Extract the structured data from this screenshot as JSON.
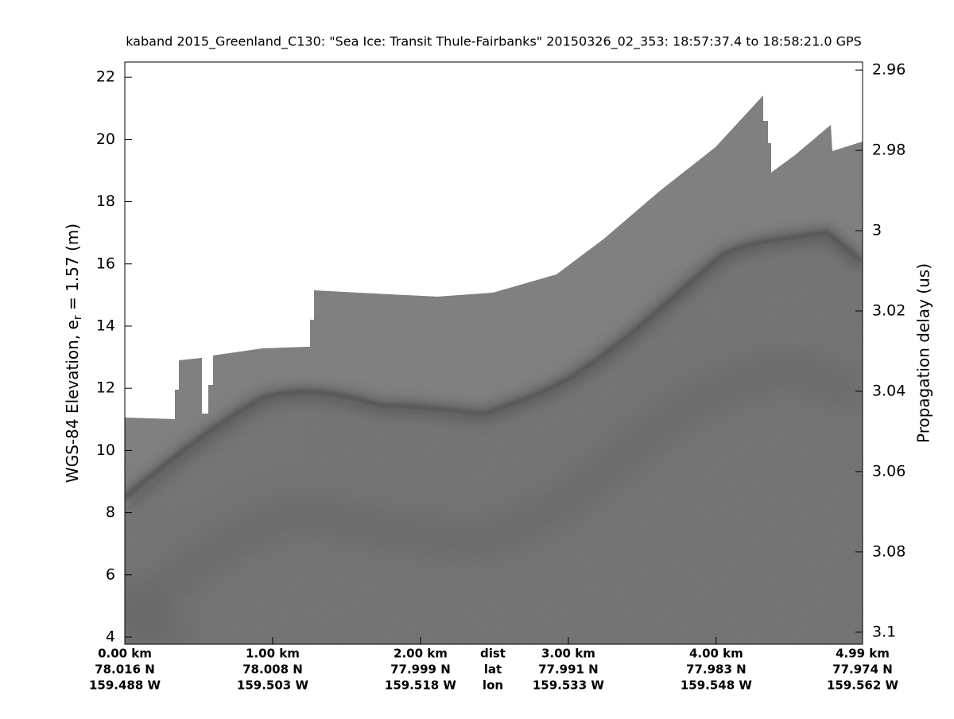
{
  "chart_data": {
    "type": "echogram",
    "title": "kaband 2015_Greenland_C130: \"Sea Ice: Transit Thule-Fairbanks\"  20150326_02_353: 18:57:37.4 to 18:58:21.0 GPS",
    "ylabel": [
      "WGS-84 Elevation, e",
      "r",
      " = 1.57 (m)"
    ],
    "y2label": "Propagation delay (us)",
    "xlim": [
      0,
      4.99
    ],
    "xticks": [
      {
        "value": 0,
        "label": "0.00 km"
      },
      {
        "value": 1,
        "label": "1.00 km"
      },
      {
        "value": 2,
        "label": "2.00 km"
      },
      {
        "value": 3,
        "label": "3.00 km"
      },
      {
        "value": 4,
        "label": "4.00 km"
      },
      {
        "value": 4.99,
        "label": "4.99 km"
      }
    ],
    "lat_labels": [
      "78.016 N",
      "78.008 N",
      "77.999 N",
      "77.991 N",
      "77.983 N",
      "77.974 N"
    ],
    "lon_labels": [
      "159.488 W",
      "159.503 W",
      "159.518 W",
      "159.533 W",
      "159.548 W",
      "159.562 W"
    ],
    "row_labels": [
      "dist",
      "lat",
      "lon"
    ],
    "ylim": [
      3.77,
      22.49
    ],
    "yticks": [
      4,
      6,
      8,
      10,
      12,
      14,
      16,
      18,
      20,
      22
    ],
    "y2lim": [
      3.103,
      2.958
    ],
    "y2ticks": [
      2.96,
      2.98,
      3,
      3.02,
      3.04,
      3.06,
      3.08,
      3.1
    ]
  }
}
